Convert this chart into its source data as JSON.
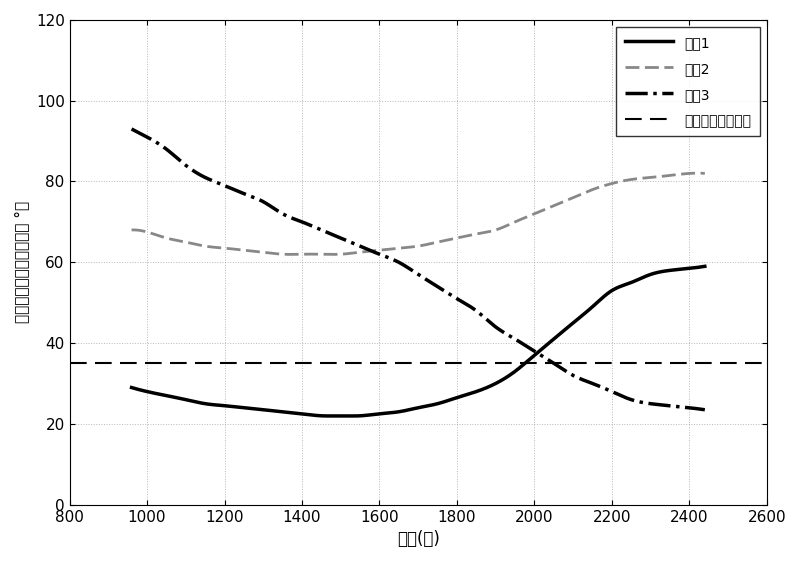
{
  "xlabel": "时间(秒)",
  "ylabel": "星敏光轴与太阳光夹角（ °）",
  "xlim": [
    800,
    2600
  ],
  "ylim": [
    0,
    120
  ],
  "xticks": [
    800,
    1000,
    1200,
    1400,
    1600,
    1800,
    2000,
    2200,
    2400,
    2600
  ],
  "yticks": [
    0,
    20,
    40,
    60,
    80,
    100,
    120
  ],
  "threshold": 35,
  "legend_labels": [
    "星敏1",
    "星敏2",
    "星敏3",
    "星敏对日视场阈値"
  ],
  "star1_x": [
    960,
    1000,
    1050,
    1100,
    1150,
    1200,
    1250,
    1300,
    1350,
    1400,
    1450,
    1500,
    1550,
    1600,
    1650,
    1700,
    1750,
    1800,
    1850,
    1900,
    1950,
    2000,
    2050,
    2100,
    2150,
    2200,
    2250,
    2300,
    2350,
    2400,
    2440
  ],
  "star1_y": [
    29,
    28,
    27,
    26,
    25,
    24.5,
    24,
    23.5,
    23,
    22.5,
    22,
    22,
    22,
    22.5,
    23,
    24,
    25,
    26.5,
    28,
    30,
    33,
    37,
    41,
    45,
    49,
    53,
    55,
    57,
    58,
    58.5,
    59
  ],
  "star2_x": [
    960,
    1000,
    1050,
    1100,
    1150,
    1200,
    1250,
    1300,
    1350,
    1400,
    1450,
    1500,
    1550,
    1600,
    1650,
    1700,
    1750,
    1800,
    1850,
    1900,
    1950,
    2000,
    2050,
    2100,
    2150,
    2200,
    2250,
    2300,
    2350,
    2400,
    2440
  ],
  "star2_y": [
    68,
    67.5,
    66,
    65,
    64,
    63.5,
    63,
    62.5,
    62,
    62,
    62,
    62,
    62.5,
    63,
    63.5,
    64,
    65,
    66,
    67,
    68,
    70,
    72,
    74,
    76,
    78,
    79.5,
    80.5,
    81,
    81.5,
    82,
    82
  ],
  "star3_x": [
    960,
    1000,
    1050,
    1100,
    1150,
    1200,
    1250,
    1300,
    1350,
    1400,
    1450,
    1500,
    1550,
    1600,
    1650,
    1700,
    1750,
    1800,
    1850,
    1900,
    1950,
    2000,
    2050,
    2100,
    2150,
    2200,
    2250,
    2300,
    2350,
    2400,
    2440
  ],
  "star3_y": [
    93,
    91,
    88,
    84,
    81,
    79,
    77,
    75,
    72,
    70,
    68,
    66,
    64,
    62,
    60,
    57,
    54,
    51,
    48,
    44,
    41,
    38,
    35,
    32,
    30,
    28,
    26,
    25,
    24.5,
    24,
    23.5
  ],
  "background_color": "#ffffff",
  "grid_color": "#888888"
}
